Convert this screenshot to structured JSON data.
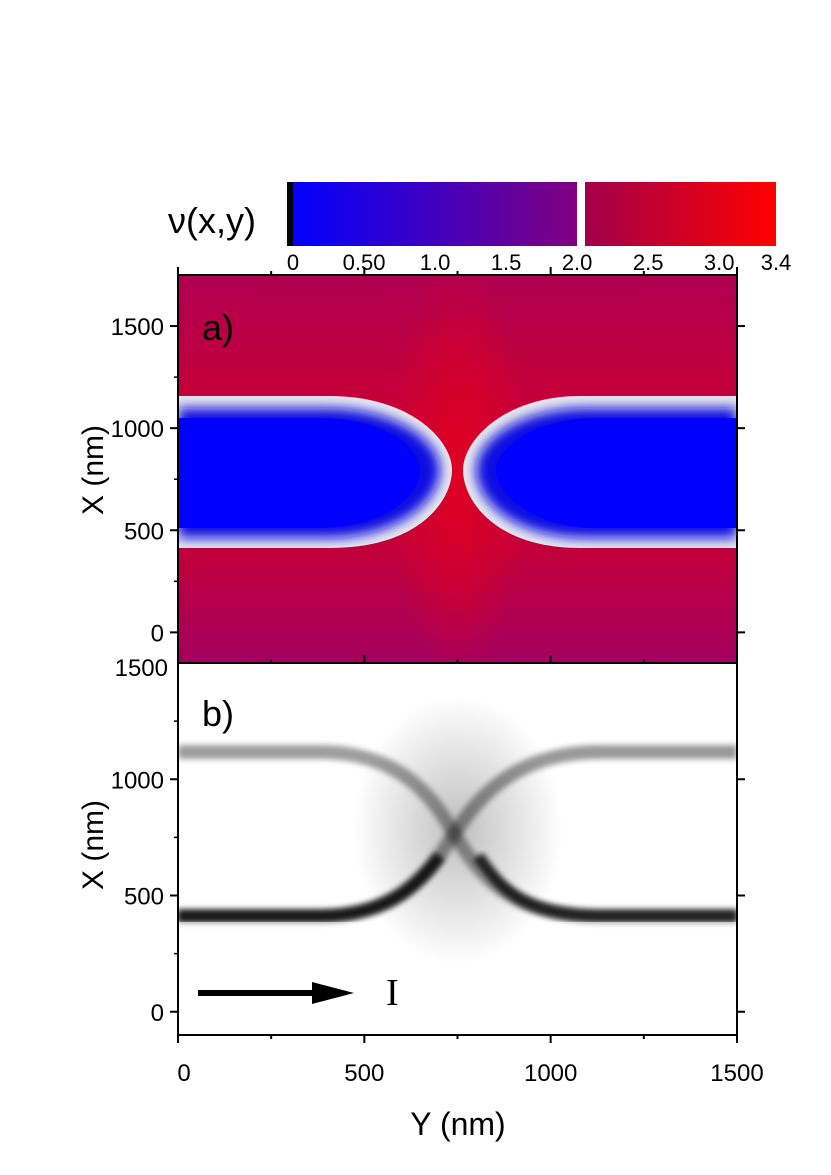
{
  "colorbar": {
    "label": "ν(x,y)",
    "ticks": [
      "0",
      "0.50",
      "1.0",
      "1.5",
      "2.0",
      "2.5",
      "3.0",
      "3.4"
    ],
    "tick_values": [
      0,
      0.5,
      1.0,
      1.5,
      2.0,
      2.5,
      3.0,
      3.4
    ],
    "range": [
      0,
      3.4
    ],
    "colors": {
      "low": "#0000ff",
      "mid": "#800080",
      "high": "#ff0000"
    }
  },
  "chart_data": [
    {
      "type": "heatmap",
      "panel_label": "a)",
      "quantity": "ν(x,y)",
      "xlabel": "Y (nm)",
      "ylabel": "X (nm)",
      "xlim": [
        0,
        1500
      ],
      "ylim": [
        -150,
        1750
      ],
      "yticks": [
        0,
        500,
        1000,
        1500
      ],
      "ytick_labels": [
        "0",
        "500",
        "1000",
        "1500"
      ],
      "regions": {
        "outer_filling": 2.6,
        "inner_filling": 0.1,
        "boundary_level": 2.0,
        "left_region": {
          "y_range": [
            0,
            700
          ],
          "x_range": [
            350,
            1100
          ]
        },
        "right_region": {
          "y_range": [
            800,
            1500
          ],
          "x_range": [
            350,
            1100
          ]
        }
      }
    },
    {
      "type": "heatmap",
      "panel_label": "b)",
      "xlabel": "Y (nm)",
      "ylabel": "X (nm)",
      "xlim": [
        0,
        1500
      ],
      "ylim": [
        -100,
        1500
      ],
      "xticks": [
        0,
        500,
        1000,
        1500
      ],
      "xtick_labels": [
        "0",
        "500",
        "1000",
        "1500"
      ],
      "yticks": [
        0,
        500,
        1000
      ],
      "ytick_labels": [
        "0",
        "500",
        "1000"
      ],
      "extra_tick_label": "1500",
      "current_label": "I",
      "current_arrow": {
        "y_start": 50,
        "y_end": 480,
        "x": 100
      },
      "paths": [
        {
          "name": "lower",
          "strength": 0.92,
          "start_x": 400,
          "end_x": 1100
        },
        {
          "name": "upper",
          "strength": 0.45,
          "start_x": 1100,
          "end_x": 400
        }
      ]
    }
  ]
}
